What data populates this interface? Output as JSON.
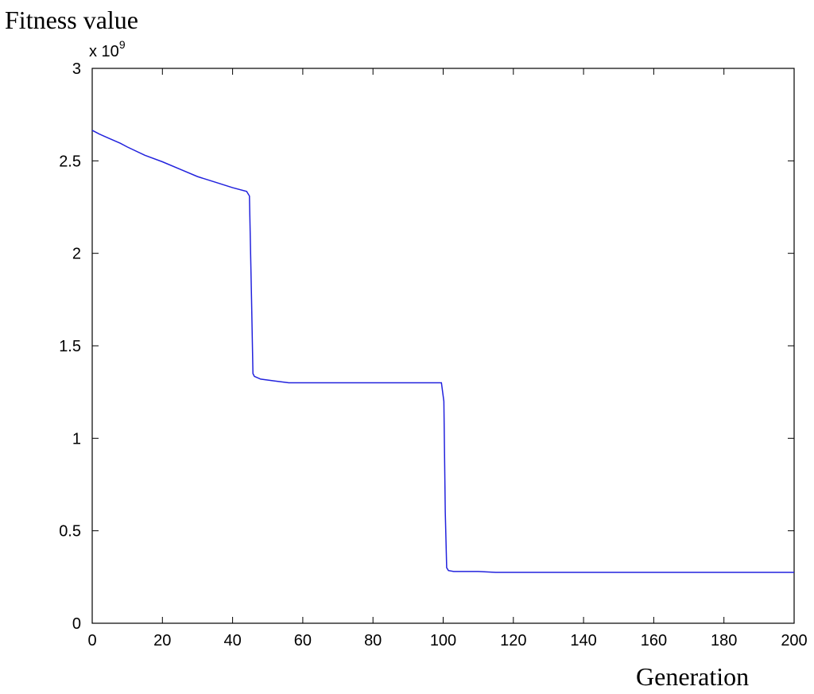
{
  "chart_data": {
    "type": "line",
    "ylabel": "Fitness value",
    "xlabel": "Generation",
    "y_multiplier": {
      "base": "x 10",
      "exponent": "9"
    },
    "xlim": [
      0,
      200
    ],
    "ylim": [
      0,
      3
    ],
    "x_ticks": [
      0,
      20,
      40,
      60,
      80,
      100,
      120,
      140,
      160,
      180,
      200
    ],
    "y_ticks": [
      0,
      0.5,
      1,
      1.5,
      2,
      2.5,
      3
    ],
    "y_tick_labels": [
      "0",
      "0.5",
      "1",
      "1.5",
      "2",
      "2.5",
      "3"
    ],
    "grid": false,
    "line_color": "#2222dd",
    "series": [
      {
        "x": [
          0,
          2,
          5,
          8,
          10,
          15,
          20,
          25,
          30,
          35,
          40,
          44,
          44.8,
          45.4,
          45.8,
          46.2,
          48,
          52,
          56,
          60,
          70,
          80,
          90,
          99.5,
          100.2,
          100.6,
          101,
          101.5,
          103,
          110,
          115,
          120,
          140,
          160,
          180,
          200
        ],
        "y": [
          2.665,
          2.645,
          2.62,
          2.595,
          2.575,
          2.53,
          2.495,
          2.455,
          2.415,
          2.385,
          2.355,
          2.335,
          2.31,
          1.75,
          1.35,
          1.335,
          1.32,
          1.31,
          1.3,
          1.3,
          1.3,
          1.3,
          1.3,
          1.3,
          1.2,
          0.6,
          0.3,
          0.285,
          0.28,
          0.28,
          0.275,
          0.275,
          0.275,
          0.275,
          0.275,
          0.275
        ]
      }
    ]
  }
}
